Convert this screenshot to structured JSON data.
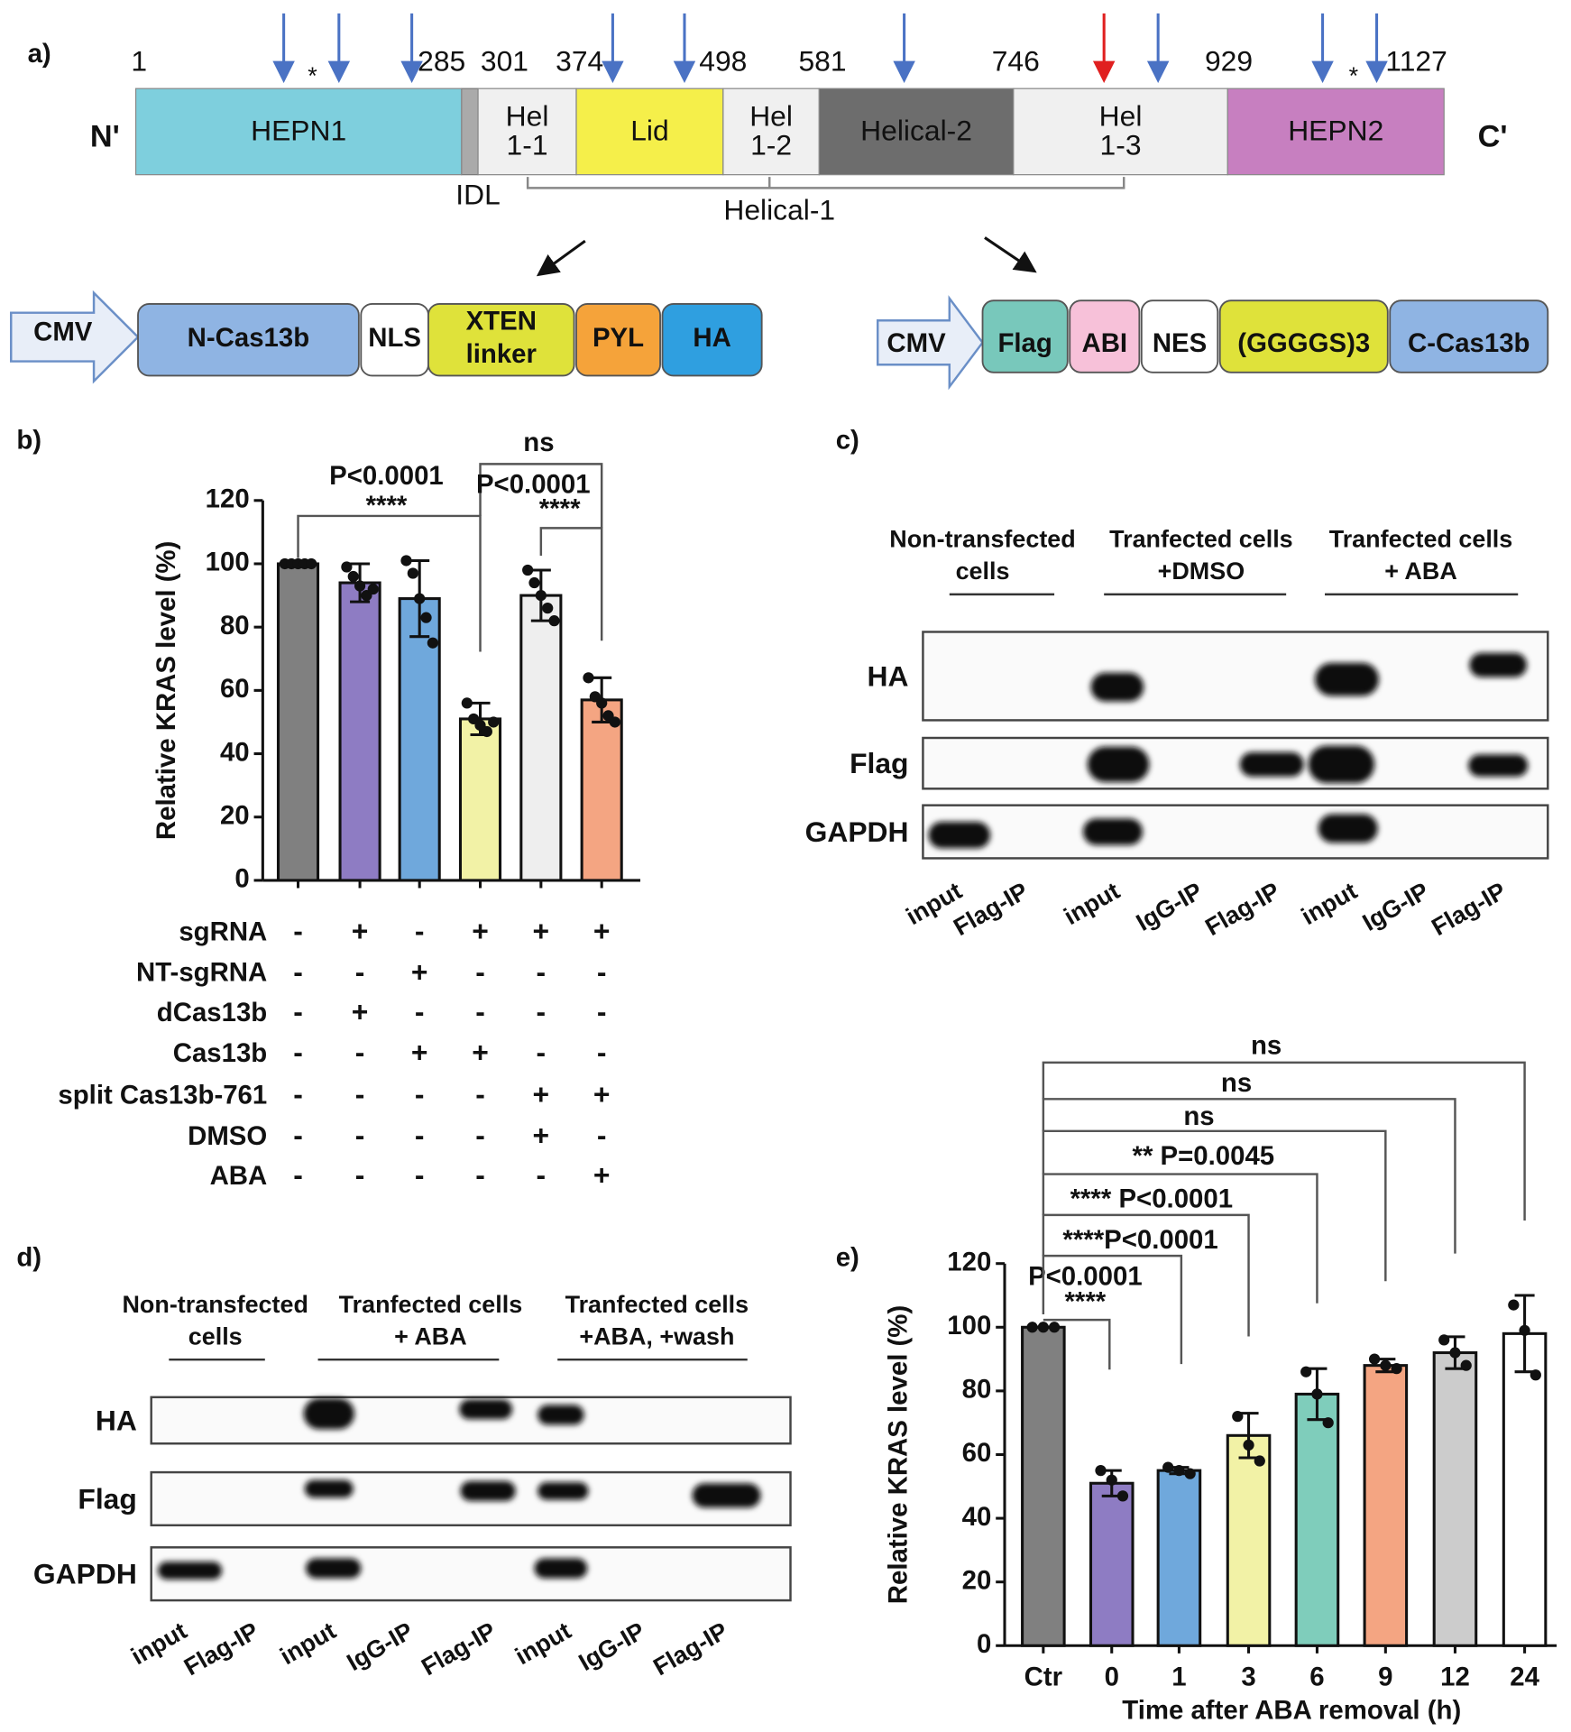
{
  "panel_labels": [
    "a)",
    "b)",
    "c)",
    "d)",
    "e)"
  ],
  "panel_a": {
    "positions": [
      1,
      285,
      301,
      374,
      498,
      581,
      746,
      929,
      1127
    ],
    "n_term": "N'",
    "c_term": "C'",
    "domains": [
      [
        "HEPN1"
      ],
      [
        "Hel",
        "1-1"
      ],
      [
        "Lid"
      ],
      [
        "Hel",
        "1-2"
      ],
      [
        "Helical-2"
      ],
      [
        "Hel",
        "1-3"
      ],
      [
        "HEPN2"
      ]
    ],
    "idl": "IDL",
    "helical1": "Helical-1",
    "asterisks": [
      "*",
      "*"
    ],
    "construct_n": [
      [
        "CMV"
      ],
      [
        "N-Cas13b"
      ],
      [
        "NLS"
      ],
      [
        "XTEN",
        "linker"
      ],
      [
        "PYL"
      ],
      [
        "HA"
      ]
    ],
    "construct_c": [
      [
        "CMV"
      ],
      [
        "Flag"
      ],
      [
        "ABI"
      ],
      [
        "NES"
      ],
      [
        "(GGGGS)3"
      ],
      [
        "C-Cas13b"
      ]
    ]
  },
  "chart_data": [
    {
      "type": "bar",
      "ylabel": "Relative KRAS level (%)",
      "ylim": [
        0,
        120
      ],
      "yticks": [
        0,
        20,
        40,
        60,
        80,
        100,
        120
      ],
      "values": [
        100,
        94,
        89,
        51,
        90,
        57
      ],
      "errors": [
        0,
        6,
        12,
        5,
        8,
        7
      ],
      "points": [
        [
          100,
          100,
          100,
          100,
          100
        ],
        [
          99,
          96,
          93,
          90,
          92
        ],
        [
          101,
          97,
          89,
          83,
          75
        ],
        [
          56,
          51,
          49,
          47,
          50
        ],
        [
          98,
          94,
          90,
          86,
          82
        ],
        [
          64,
          58,
          56,
          52,
          50
        ]
      ],
      "colors": [
        "#808080",
        "#8e7cc3",
        "#6fa8dc",
        "#f2f2a6",
        "#eeeeee",
        "#f4a582"
      ],
      "significance": [
        [
          "P<0.0001",
          "****"
        ],
        [
          "ns"
        ],
        [
          "P<0.0001",
          "****"
        ]
      ],
      "conditions": {
        "names": [
          "sgRNA",
          "NT-sgRNA",
          "dCas13b",
          "Cas13b",
          "split Cas13b-761",
          "DMSO",
          "ABA"
        ],
        "signs": [
          [
            "-",
            "+",
            "-",
            "+",
            "+",
            "+"
          ],
          [
            "-",
            "-",
            "+",
            "-",
            "-",
            "-"
          ],
          [
            "-",
            "+",
            "-",
            "-",
            "-",
            "-"
          ],
          [
            "-",
            "-",
            "+",
            "+",
            "-",
            "-"
          ],
          [
            "-",
            "-",
            "-",
            "-",
            "+",
            "+"
          ],
          [
            "-",
            "-",
            "-",
            "-",
            "+",
            "-"
          ],
          [
            "-",
            "-",
            "-",
            "-",
            "-",
            "+"
          ]
        ]
      }
    },
    {
      "type": "bar",
      "ylabel": "Relative KRAS level (%)",
      "xlabel": "Time after ABA removal (h)",
      "categories": [
        "Ctr",
        "0",
        "1",
        "3",
        "6",
        "9",
        "12",
        "24"
      ],
      "ylim": [
        0,
        120
      ],
      "yticks": [
        0,
        20,
        40,
        60,
        80,
        100,
        120
      ],
      "values": [
        100,
        51,
        55,
        66,
        79,
        88,
        92,
        98
      ],
      "errors": [
        0,
        4,
        1,
        7,
        8,
        2,
        5,
        12
      ],
      "points": [
        [
          100,
          100,
          100
        ],
        [
          55,
          52,
          47
        ],
        [
          56,
          55,
          54
        ],
        [
          72,
          63,
          58
        ],
        [
          86,
          79,
          70
        ],
        [
          90,
          88,
          87
        ],
        [
          96,
          92,
          88
        ],
        [
          107,
          99,
          85
        ]
      ],
      "colors": [
        "#808080",
        "#8e7cc3",
        "#6fa8dc",
        "#f2f2a6",
        "#7fcdbb",
        "#f4a582",
        "#cccccc",
        "#ffffff"
      ],
      "significance": [
        [
          "P<0.0001",
          "****"
        ],
        [
          "****P<0.0001"
        ],
        [
          "**** P<0.0001"
        ],
        [
          "** P=0.0045"
        ],
        [
          "ns"
        ],
        [
          "ns"
        ],
        [
          "ns"
        ]
      ]
    }
  ],
  "panel_c": {
    "headers": [
      [
        "Non-transfected",
        "cells"
      ],
      [
        "Tranfected cells",
        "+DMSO"
      ],
      [
        "Tranfected cells",
        "+ ABA"
      ]
    ],
    "rows": [
      "HA",
      "Flag",
      "GAPDH"
    ],
    "lanes": [
      "input",
      "Flag-IP",
      "input",
      "IgG-IP",
      "Flag-IP",
      "input",
      "IgG-IP",
      "Flag-IP"
    ]
  },
  "panel_d": {
    "headers": [
      [
        "Non-transfected",
        "cells"
      ],
      [
        "Tranfected cells",
        "+ ABA"
      ],
      [
        "Tranfected cells",
        "+ABA, +wash"
      ]
    ],
    "rows": [
      "HA",
      "Flag",
      "GAPDH"
    ],
    "lanes": [
      "input",
      "Flag-IP",
      "input",
      "IgG-IP",
      "Flag-IP",
      "input",
      "IgG-IP",
      "Flag-IP"
    ]
  }
}
